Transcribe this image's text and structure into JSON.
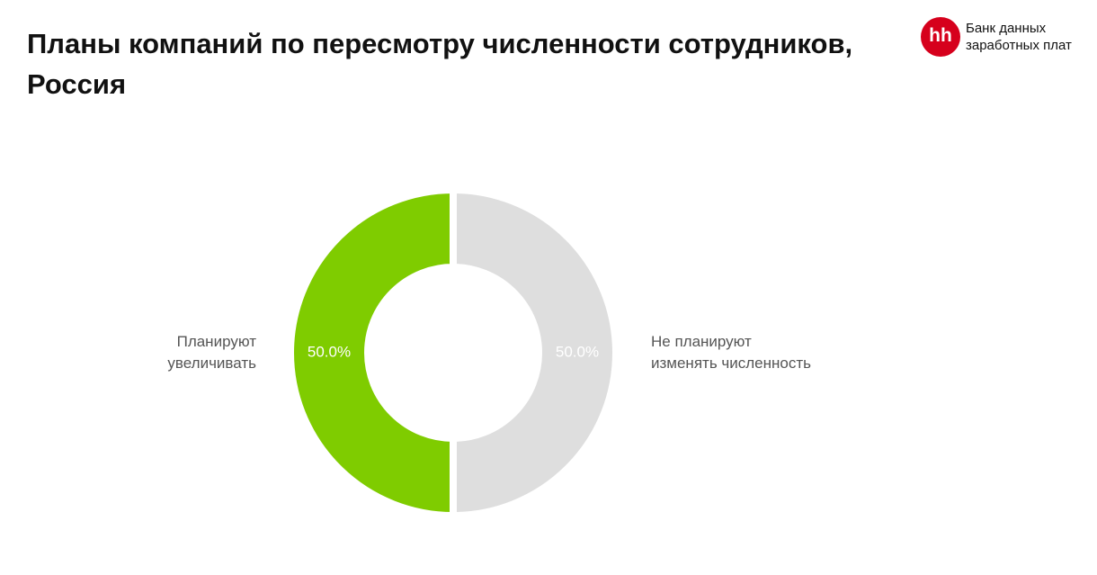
{
  "logo": {
    "mark": "hh",
    "text": "Банк данных\nзаработных плат"
  },
  "chart_data": {
    "type": "donut",
    "title": "Планы компаний по пересмотру численности сотрудников, Россия",
    "categories": [
      "Планируют\nувеличивать",
      "Не планируют\nизменять численность"
    ],
    "values": [
      50,
      50
    ],
    "value_labels": [
      "50.0%",
      "50.0%"
    ],
    "colors": [
      "#7fcc00",
      "#dedede"
    ]
  }
}
